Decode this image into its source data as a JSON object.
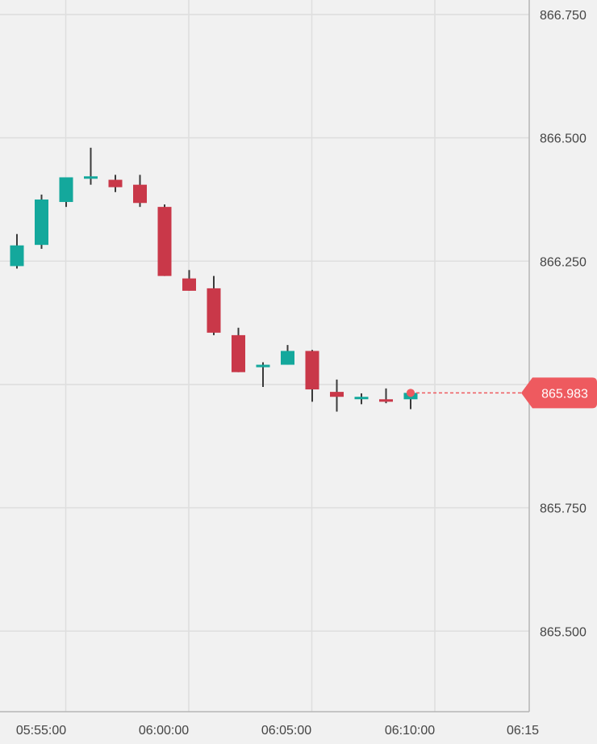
{
  "chart_data": {
    "type": "candlestick",
    "title": "",
    "xlabel": "",
    "ylabel": "",
    "x_ticks": [
      "05:55:00",
      "06:00:00",
      "06:05:00",
      "06:10:00",
      "06:15"
    ],
    "y_ticks": [
      "866.750",
      "866.500",
      "866.250",
      "865.750",
      "865.500"
    ],
    "last_price_label": "865.983",
    "last_price": 865.983,
    "colors": {
      "up": "#14a89c",
      "down": "#c93849",
      "wick": "#3a3a3a",
      "price_tag": "#ee5a5f"
    },
    "candles": [
      {
        "time": "05:54",
        "open": 866.24,
        "high": 866.305,
        "low": 866.235,
        "close": 866.282
      },
      {
        "time": "05:55",
        "open": 866.283,
        "high": 866.385,
        "low": 866.275,
        "close": 866.375
      },
      {
        "time": "05:56",
        "open": 866.37,
        "high": 866.42,
        "low": 866.36,
        "close": 866.42
      },
      {
        "time": "05:57",
        "open": 866.42,
        "high": 866.48,
        "low": 866.405,
        "close": 866.422
      },
      {
        "time": "05:58",
        "open": 866.415,
        "high": 866.425,
        "low": 866.39,
        "close": 866.4
      },
      {
        "time": "05:59",
        "open": 866.405,
        "high": 866.425,
        "low": 866.36,
        "close": 866.368
      },
      {
        "time": "06:00",
        "open": 866.36,
        "high": 866.365,
        "low": 866.22,
        "close": 866.22
      },
      {
        "time": "06:01",
        "open": 866.215,
        "high": 866.232,
        "low": 866.19,
        "close": 866.19
      },
      {
        "time": "06:02",
        "open": 866.195,
        "high": 866.22,
        "low": 866.1,
        "close": 866.105
      },
      {
        "time": "06:03",
        "open": 866.1,
        "high": 866.115,
        "low": 866.025,
        "close": 866.025
      },
      {
        "time": "06:04",
        "open": 866.035,
        "high": 866.045,
        "low": 865.995,
        "close": 866.04
      },
      {
        "time": "06:05",
        "open": 866.04,
        "high": 866.08,
        "low": 866.04,
        "close": 866.068
      },
      {
        "time": "06:06",
        "open": 866.068,
        "high": 866.07,
        "low": 865.965,
        "close": 865.99
      },
      {
        "time": "06:07",
        "open": 865.985,
        "high": 866.01,
        "low": 865.945,
        "close": 865.975
      },
      {
        "time": "06:08",
        "open": 865.975,
        "high": 865.982,
        "low": 865.96,
        "close": 865.975
      },
      {
        "time": "06:09",
        "open": 865.97,
        "high": 865.992,
        "low": 865.962,
        "close": 865.965
      },
      {
        "time": "06:10",
        "open": 865.97,
        "high": 865.985,
        "low": 865.95,
        "close": 865.983
      }
    ],
    "ylim": [
      865.335,
      866.78
    ],
    "grid": true
  }
}
